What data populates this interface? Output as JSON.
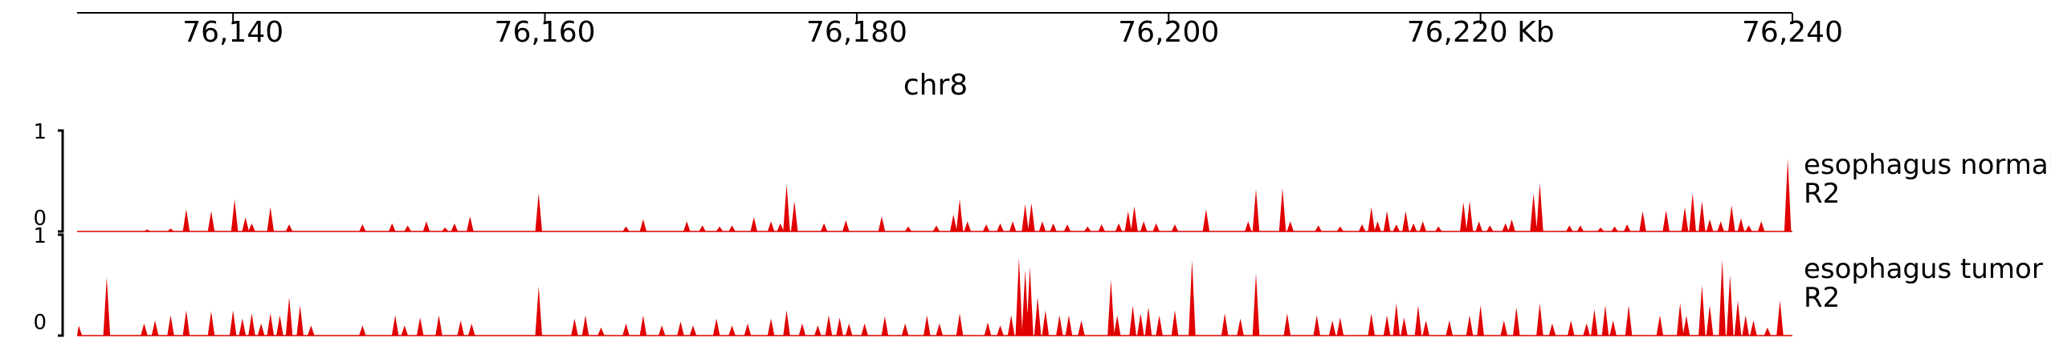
{
  "chart_data": {
    "type": "area",
    "chromosome": "chr8",
    "xlim": [
      76130,
      76240
    ],
    "x_unit": "Kb",
    "x_ticks": [
      {
        "value": 76140,
        "label": "76,140"
      },
      {
        "value": 76160,
        "label": "76,160"
      },
      {
        "value": 76180,
        "label": "76,180"
      },
      {
        "value": 76200,
        "label": "76,200"
      },
      {
        "value": 76220,
        "label": "76,220 Kb"
      },
      {
        "value": 76240,
        "label": "76,240"
      }
    ],
    "fill_color": "#e00000",
    "tracks": [
      {
        "label_lines": [
          "esophagus normal",
          "R2"
        ],
        "ylim": [
          0,
          1
        ],
        "y_tick_labels": {
          "min": "0",
          "max": "1"
        },
        "peaks": [
          [
            76134.5,
            0.02
          ],
          [
            76136.0,
            0.03
          ],
          [
            76137.0,
            0.22
          ],
          [
            76138.6,
            0.2
          ],
          [
            76140.1,
            0.32
          ],
          [
            76140.8,
            0.14
          ],
          [
            76141.2,
            0.08
          ],
          [
            76142.4,
            0.24
          ],
          [
            76143.6,
            0.07
          ],
          [
            76148.3,
            0.07
          ],
          [
            76150.2,
            0.08
          ],
          [
            76151.2,
            0.06
          ],
          [
            76152.4,
            0.1
          ],
          [
            76153.6,
            0.04
          ],
          [
            76154.2,
            0.08
          ],
          [
            76155.2,
            0.15
          ],
          [
            76159.6,
            0.38
          ],
          [
            76165.2,
            0.05
          ],
          [
            76166.3,
            0.12
          ],
          [
            76169.1,
            0.1
          ],
          [
            76170.1,
            0.06
          ],
          [
            76171.2,
            0.05
          ],
          [
            76172.0,
            0.06
          ],
          [
            76173.4,
            0.14
          ],
          [
            76174.5,
            0.1
          ],
          [
            76175.1,
            0.08
          ],
          [
            76175.5,
            0.47
          ],
          [
            76176.0,
            0.3
          ],
          [
            76177.9,
            0.08
          ],
          [
            76179.3,
            0.11
          ],
          [
            76181.6,
            0.15
          ],
          [
            76183.3,
            0.05
          ],
          [
            76185.1,
            0.06
          ],
          [
            76186.2,
            0.17
          ],
          [
            76186.6,
            0.32
          ],
          [
            76187.1,
            0.1
          ],
          [
            76188.3,
            0.07
          ],
          [
            76189.2,
            0.08
          ],
          [
            76190.0,
            0.1
          ],
          [
            76190.8,
            0.27
          ],
          [
            76191.2,
            0.28
          ],
          [
            76191.9,
            0.1
          ],
          [
            76192.6,
            0.08
          ],
          [
            76193.5,
            0.07
          ],
          [
            76194.8,
            0.05
          ],
          [
            76195.7,
            0.07
          ],
          [
            76196.8,
            0.08
          ],
          [
            76197.4,
            0.2
          ],
          [
            76197.8,
            0.25
          ],
          [
            76198.4,
            0.1
          ],
          [
            76199.2,
            0.08
          ],
          [
            76200.4,
            0.07
          ],
          [
            76202.4,
            0.22
          ],
          [
            76205.1,
            0.1
          ],
          [
            76205.6,
            0.42
          ],
          [
            76207.3,
            0.43
          ],
          [
            76207.8,
            0.1
          ],
          [
            76209.6,
            0.06
          ],
          [
            76211.0,
            0.05
          ],
          [
            76212.4,
            0.07
          ],
          [
            76213.0,
            0.24
          ],
          [
            76213.4,
            0.1
          ],
          [
            76214.0,
            0.2
          ],
          [
            76214.6,
            0.07
          ],
          [
            76215.2,
            0.2
          ],
          [
            76215.7,
            0.08
          ],
          [
            76216.3,
            0.1
          ],
          [
            76217.3,
            0.05
          ],
          [
            76218.9,
            0.29
          ],
          [
            76219.3,
            0.3
          ],
          [
            76219.9,
            0.1
          ],
          [
            76220.6,
            0.06
          ],
          [
            76221.6,
            0.08
          ],
          [
            76222.0,
            0.12
          ],
          [
            76223.4,
            0.38
          ],
          [
            76223.8,
            0.48
          ],
          [
            76225.7,
            0.06
          ],
          [
            76226.4,
            0.06
          ],
          [
            76227.7,
            0.04
          ],
          [
            76228.6,
            0.05
          ],
          [
            76229.4,
            0.07
          ],
          [
            76230.4,
            0.2
          ],
          [
            76231.9,
            0.21
          ],
          [
            76233.1,
            0.24
          ],
          [
            76233.6,
            0.38
          ],
          [
            76234.2,
            0.3
          ],
          [
            76234.7,
            0.12
          ],
          [
            76235.4,
            0.1
          ],
          [
            76236.1,
            0.26
          ],
          [
            76236.7,
            0.13
          ],
          [
            76237.2,
            0.06
          ],
          [
            76238.0,
            0.1
          ],
          [
            76239.7,
            0.72
          ]
        ]
      },
      {
        "label_lines": [
          "esophagus tumor",
          "R2"
        ],
        "ylim": [
          0,
          1
        ],
        "y_tick_labels": {
          "min": "0",
          "max": "1"
        },
        "peaks": [
          [
            76130.1,
            0.1
          ],
          [
            76131.9,
            0.58
          ],
          [
            76134.3,
            0.12
          ],
          [
            76135.0,
            0.15
          ],
          [
            76136.0,
            0.2
          ],
          [
            76137.0,
            0.25
          ],
          [
            76138.6,
            0.24
          ],
          [
            76140.0,
            0.25
          ],
          [
            76140.6,
            0.17
          ],
          [
            76141.2,
            0.22
          ],
          [
            76141.8,
            0.12
          ],
          [
            76142.4,
            0.22
          ],
          [
            76143.0,
            0.2
          ],
          [
            76143.6,
            0.38
          ],
          [
            76144.3,
            0.3
          ],
          [
            76145.0,
            0.1
          ],
          [
            76148.3,
            0.1
          ],
          [
            76150.4,
            0.2
          ],
          [
            76151.0,
            0.1
          ],
          [
            76152.0,
            0.18
          ],
          [
            76153.2,
            0.2
          ],
          [
            76154.6,
            0.15
          ],
          [
            76155.3,
            0.12
          ],
          [
            76159.6,
            0.49
          ],
          [
            76161.9,
            0.17
          ],
          [
            76162.6,
            0.2
          ],
          [
            76163.6,
            0.08
          ],
          [
            76165.2,
            0.12
          ],
          [
            76166.3,
            0.2
          ],
          [
            76167.5,
            0.1
          ],
          [
            76168.7,
            0.14
          ],
          [
            76169.5,
            0.1
          ],
          [
            76171.0,
            0.17
          ],
          [
            76172.0,
            0.1
          ],
          [
            76173.0,
            0.12
          ],
          [
            76174.5,
            0.17
          ],
          [
            76175.5,
            0.25
          ],
          [
            76176.5,
            0.12
          ],
          [
            76177.5,
            0.1
          ],
          [
            76178.2,
            0.2
          ],
          [
            76178.9,
            0.18
          ],
          [
            76179.5,
            0.12
          ],
          [
            76180.5,
            0.12
          ],
          [
            76181.8,
            0.19
          ],
          [
            76183.1,
            0.12
          ],
          [
            76184.5,
            0.2
          ],
          [
            76185.3,
            0.12
          ],
          [
            76186.6,
            0.22
          ],
          [
            76188.4,
            0.13
          ],
          [
            76189.2,
            0.1
          ],
          [
            76189.9,
            0.2
          ],
          [
            76190.4,
            0.77
          ],
          [
            76190.8,
            0.65
          ],
          [
            76191.1,
            0.68
          ],
          [
            76191.6,
            0.38
          ],
          [
            76192.1,
            0.25
          ],
          [
            76193.0,
            0.2
          ],
          [
            76193.6,
            0.2
          ],
          [
            76194.4,
            0.15
          ],
          [
            76196.3,
            0.55
          ],
          [
            76196.7,
            0.2
          ],
          [
            76197.7,
            0.3
          ],
          [
            76198.2,
            0.22
          ],
          [
            76198.7,
            0.28
          ],
          [
            76199.4,
            0.2
          ],
          [
            76200.4,
            0.25
          ],
          [
            76201.5,
            0.75
          ],
          [
            76203.6,
            0.22
          ],
          [
            76204.6,
            0.17
          ],
          [
            76205.6,
            0.62
          ],
          [
            76207.6,
            0.22
          ],
          [
            76209.5,
            0.2
          ],
          [
            76210.5,
            0.15
          ],
          [
            76211.0,
            0.18
          ],
          [
            76213.0,
            0.22
          ],
          [
            76214.0,
            0.2
          ],
          [
            76214.6,
            0.32
          ],
          [
            76215.1,
            0.18
          ],
          [
            76216.0,
            0.3
          ],
          [
            76216.5,
            0.15
          ],
          [
            76218.0,
            0.15
          ],
          [
            76219.3,
            0.2
          ],
          [
            76220.0,
            0.3
          ],
          [
            76221.5,
            0.15
          ],
          [
            76222.3,
            0.28
          ],
          [
            76223.8,
            0.32
          ],
          [
            76224.6,
            0.12
          ],
          [
            76225.8,
            0.15
          ],
          [
            76226.8,
            0.12
          ],
          [
            76227.3,
            0.26
          ],
          [
            76228.0,
            0.3
          ],
          [
            76228.5,
            0.15
          ],
          [
            76229.5,
            0.3
          ],
          [
            76231.5,
            0.2
          ],
          [
            76232.8,
            0.32
          ],
          [
            76233.2,
            0.2
          ],
          [
            76234.2,
            0.5
          ],
          [
            76234.7,
            0.3
          ],
          [
            76235.5,
            0.75
          ],
          [
            76236.0,
            0.6
          ],
          [
            76236.5,
            0.35
          ],
          [
            76237.0,
            0.2
          ],
          [
            76237.5,
            0.15
          ],
          [
            76238.4,
            0.08
          ],
          [
            76239.2,
            0.35
          ]
        ]
      }
    ]
  }
}
